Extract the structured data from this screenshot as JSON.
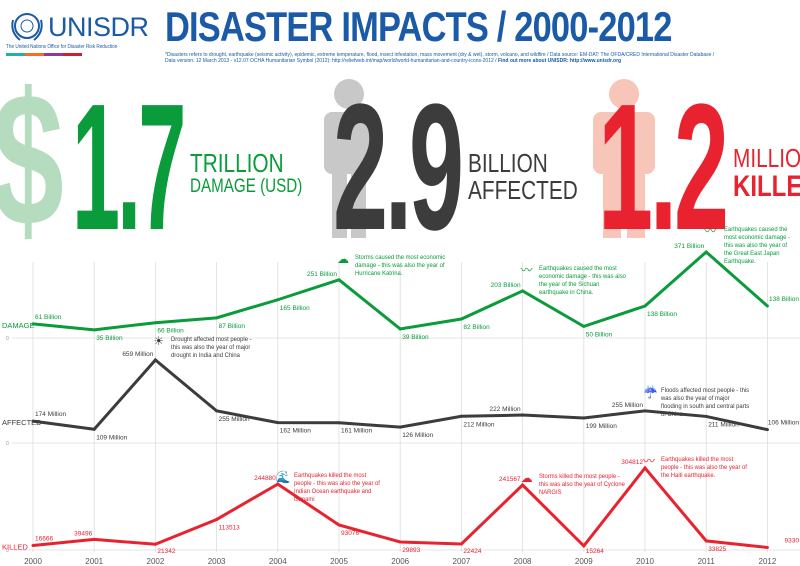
{
  "header": {
    "org": "UNISDR",
    "org_full": "The United Nations Office for Disaster Risk Reduction",
    "title": "DISASTER IMPACTS / 2000-2012",
    "note": "*Disasters refers to drought, earthquake (seismic activity), epidemic, extreme temperature, flood, insect infestation, mass movement (dry & wet), storm, volcano, and wildfire / Data source: EM-DAT: The OFDA/CRED International Disaster Database / Data version: 12 March 2013 - v12.07 OCHA Humanitarian Symbol (2012): http://reliefweb.int/map/world/world-humanitarian-and-country-icons-2012 /",
    "note_link": "Find out more about UNISDR: http://www.unisdr.org"
  },
  "headline": {
    "damage": {
      "symbol": "$",
      "value": "1.7",
      "unit": "TRILLION",
      "label": "DAMAGE (USD)"
    },
    "affected": {
      "value": "2.9",
      "unit": "BILLION",
      "label": "AFFECTED"
    },
    "killed": {
      "value": "1.2",
      "unit": "MILLION",
      "label": "KILLED"
    }
  },
  "colors": {
    "damage": "#0a9b3a",
    "affected": "#3c3c3c",
    "killed": "#e8232f",
    "brand": "#1a5aa6"
  },
  "chart_data": [
    {
      "type": "line",
      "name": "DAMAGE",
      "x": [
        2000,
        2001,
        2002,
        2003,
        2004,
        2005,
        2006,
        2007,
        2008,
        2009,
        2010,
        2011,
        2012
      ],
      "values": [
        61,
        35,
        66,
        87,
        165,
        251,
        39,
        82,
        203,
        50,
        138,
        371,
        138
      ],
      "labels": [
        "61 Billion",
        "35 Billion",
        "66 Billion",
        "87 Billion",
        "165 Billion",
        "251 Billion",
        "39 Billion",
        "82 Billion",
        "203 Billion",
        "50 Billion",
        "138 Billion",
        "371 Billion",
        "138 Billion"
      ],
      "ymin_label": "0",
      "annotations": [
        {
          "x": 2005,
          "icon": "storm-icon",
          "text": "Storms caused the most economic damage - this was also the year of Hurricane Katrina."
        },
        {
          "x": 2008,
          "icon": "earthquake-icon",
          "text": "Earthquakes caused the most economic damage - this was also the year of the Sichuan earthquake in China."
        },
        {
          "x": 2011,
          "icon": "earthquake-icon",
          "text": "Earthquakes caused the most economic damage - this was also the year of the Great East Japan Earthquake."
        }
      ]
    },
    {
      "type": "line",
      "name": "AFFECTED",
      "x": [
        2000,
        2001,
        2002,
        2003,
        2004,
        2005,
        2006,
        2007,
        2008,
        2009,
        2010,
        2011,
        2012
      ],
      "values": [
        174,
        109,
        659,
        255,
        162,
        161,
        126,
        212,
        222,
        199,
        255,
        211,
        106
      ],
      "labels": [
        "174 Million",
        "109 Million",
        "659 Million",
        "255 Million",
        "162 Million",
        "161 Million",
        "126 Million",
        "212 Million",
        "222 Million",
        "199 Million",
        "255 Million",
        "211 Million",
        "106 Million"
      ],
      "ymin_label": "0",
      "annotations": [
        {
          "x": 2002,
          "icon": "drought-icon",
          "text": "Drought affected most people - this was also the year of major drought in India and China"
        },
        {
          "x": 2010,
          "icon": "flood-icon",
          "text": "Floods affected most people - this was also the year of major flooding in south and central parts of China"
        }
      ]
    },
    {
      "type": "line",
      "name": "KILLED",
      "x": [
        2000,
        2001,
        2002,
        2003,
        2004,
        2005,
        2006,
        2007,
        2008,
        2009,
        2010,
        2011,
        2012
      ],
      "values": [
        16666,
        39496,
        21342,
        113513,
        244880,
        93076,
        29893,
        22424,
        241567,
        15264,
        304812,
        33825,
        9330
      ],
      "labels": [
        "16666",
        "39496",
        "21342",
        "113513",
        "244880",
        "93076",
        "29893",
        "22424",
        "241567",
        "15264",
        "304812",
        "33825",
        "9330"
      ],
      "ymin_label": "0",
      "annotations": [
        {
          "x": 2004,
          "icon": "tsunami-icon",
          "text": "Earthquakes killed the most people - this was also the year of Indian Ocean earthquake and tsunami"
        },
        {
          "x": 2008,
          "icon": "storm-icon",
          "text": "Storms killed the most people - this was also the year of Cyclone NARGIS"
        },
        {
          "x": 2010,
          "icon": "earthquake-icon",
          "text": "Earthquakes killed the most people - this was also the year of the Haiti earthquake."
        }
      ]
    }
  ],
  "years": [
    "2000",
    "2001",
    "2002",
    "2003",
    "2004",
    "2005",
    "2006",
    "2007",
    "2008",
    "2009",
    "2010",
    "2011",
    "2012"
  ]
}
